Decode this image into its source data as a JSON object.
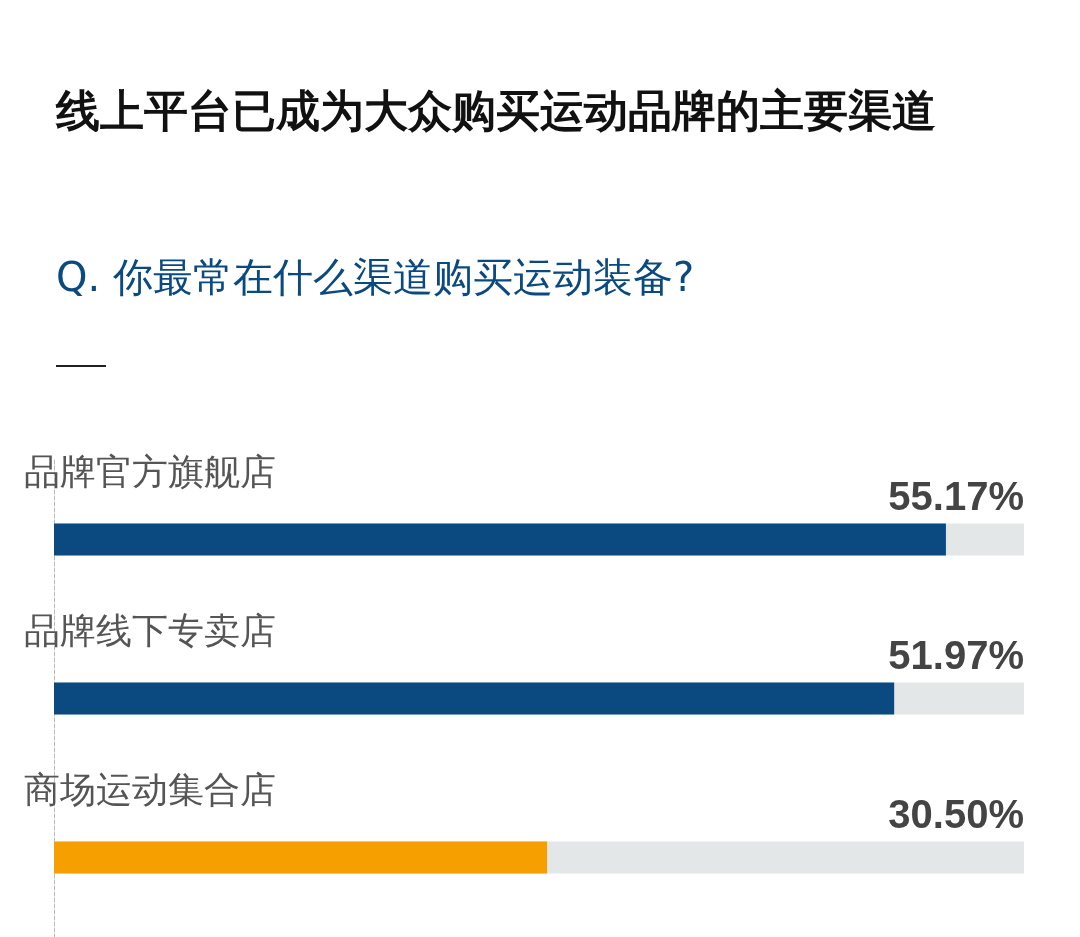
{
  "chart_data": {
    "type": "bar",
    "orientation": "horizontal",
    "title": "线上平台已成为大众购买运动品牌的主要渠道",
    "subtitle": "Q. 你最常在什么渠道购买运动装备?",
    "categories": [
      "品牌官方旗舰店",
      "品牌线下专卖店",
      "商场运动集合店"
    ],
    "values": [
      55.17,
      51.97,
      30.5
    ],
    "value_labels": [
      "55.17%",
      "51.97%",
      "30.50%"
    ],
    "colors": [
      "#0b4a80",
      "#0b4a80",
      "#f5a000"
    ],
    "xlim": [
      0,
      60
    ],
    "tick_labels": false,
    "grid": false
  }
}
